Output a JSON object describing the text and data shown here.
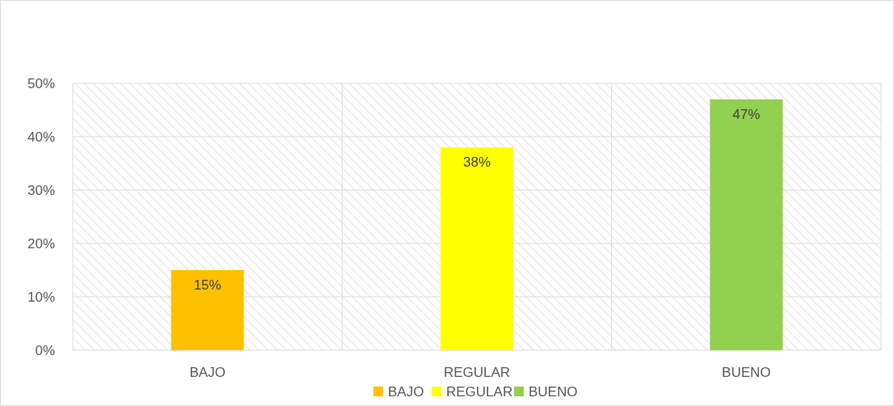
{
  "chart_data": {
    "type": "bar",
    "categories": [
      "BAJO",
      "REGULAR",
      "BUENO"
    ],
    "stacked": true,
    "series": [
      {
        "name": "BAJO",
        "color": "#ffc000",
        "values": [
          15,
          null,
          null
        ],
        "value_labels": [
          "15%",
          null,
          null
        ]
      },
      {
        "name": "REGULAR",
        "color": "#ffff00",
        "values": [
          null,
          38,
          null
        ],
        "value_labels": [
          null,
          "38%",
          null
        ]
      },
      {
        "name": "BUENO",
        "color": "#92d050",
        "values": [
          null,
          null,
          47
        ],
        "value_labels": [
          null,
          null,
          "47%"
        ]
      }
    ],
    "ylim": [
      0,
      50
    ],
    "yticks": [
      {
        "value": 0,
        "label": "0%"
      },
      {
        "value": 10,
        "label": "10%"
      },
      {
        "value": 20,
        "label": "20%"
      },
      {
        "value": 30,
        "label": "30%"
      },
      {
        "value": 40,
        "label": "40%"
      },
      {
        "value": 50,
        "label": "50%"
      }
    ],
    "grid": true,
    "legend": "bottom"
  }
}
